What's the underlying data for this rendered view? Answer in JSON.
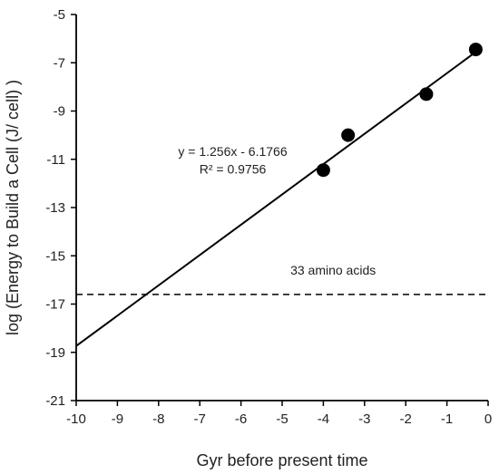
{
  "chart_data": {
    "type": "scatter",
    "title": "",
    "xlabel": "Gyr before present time",
    "ylabel": "log (Energy to Build a Cell (J/ cell) )",
    "xlim": [
      -10,
      0
    ],
    "ylim": [
      -21,
      -5
    ],
    "x_ticks": [
      -10,
      -9,
      -8,
      -7,
      -6,
      -5,
      -4,
      -3,
      -2,
      -1,
      0
    ],
    "y_ticks": [
      -21,
      -19,
      -17,
      -15,
      -13,
      -11,
      -9,
      -7,
      -5
    ],
    "grid": false,
    "points": [
      {
        "x": -4.0,
        "y": -11.45
      },
      {
        "x": -3.4,
        "y": -10.0
      },
      {
        "x": -1.5,
        "y": -8.3
      },
      {
        "x": -0.3,
        "y": -6.45
      }
    ],
    "trendline": {
      "slope": 1.256,
      "intercept": -6.1766,
      "x_range": [
        -10,
        -0.3
      ]
    },
    "equation_text": "y = 1.256x - 6.1766",
    "r2_text": "R² = 0.9756",
    "reference_line": {
      "y": -16.6,
      "style": "dashed",
      "label": "33 amino acids"
    }
  }
}
